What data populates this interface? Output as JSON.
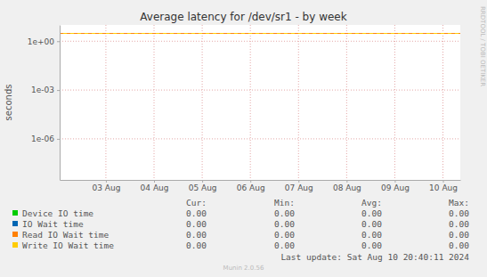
{
  "chart_data": {
    "type": "line",
    "title": "Average latency for /dev/sr1 - by week",
    "y_label": "seconds",
    "log": "y",
    "grid": true,
    "xlim": [
      2.54,
      10.86
    ],
    "xticks": [
      {
        "value": 3.5,
        "label": "03 Aug"
      },
      {
        "value": 4.5,
        "label": "04 Aug"
      },
      {
        "value": 5.5,
        "label": "05 Aug"
      },
      {
        "value": 6.5,
        "label": "06 Aug"
      },
      {
        "value": 7.5,
        "label": "07 Aug"
      },
      {
        "value": 8.5,
        "label": "08 Aug"
      },
      {
        "value": 9.5,
        "label": "09 Aug"
      },
      {
        "value": 10.5,
        "label": "10 Aug"
      }
    ],
    "ylim": [
      3e-09,
      10
    ],
    "yticks": [
      {
        "value": 1e-06,
        "label": "1e-06"
      },
      {
        "value": 0.001,
        "label": "1e-03"
      },
      {
        "value": 1,
        "label": "1e+00"
      }
    ],
    "stat_columns": [
      "Cur:",
      "Min:",
      "Avg:",
      "Max:"
    ],
    "series": [
      {
        "name": "Device IO time",
        "color": "#00cc00",
        "stats": [
          "0.00",
          "0.00",
          "0.00",
          "0.00"
        ]
      },
      {
        "name": "IO Wait time",
        "color": "#0066b3",
        "stats": [
          "0.00",
          "0.00",
          "0.00",
          "0.00"
        ]
      },
      {
        "name": "Read IO Wait time",
        "color": "#ff8000",
        "line_style": "dashed",
        "warning": 3,
        "stats": [
          "0.00",
          "0.00",
          "0.00",
          "0.00"
        ]
      },
      {
        "name": "Write IO Wait time",
        "color": "#ffcc00",
        "line_style": "dashed",
        "warning": 3,
        "stats": [
          "0.00",
          "0.00",
          "0.00",
          "0.00"
        ]
      }
    ],
    "last_update": "Last update: Sat Aug 10 20:40:11 2024",
    "footer": "Munin 2.0.56",
    "watermark": "RRDTOOL / TOBI OETIKER"
  }
}
